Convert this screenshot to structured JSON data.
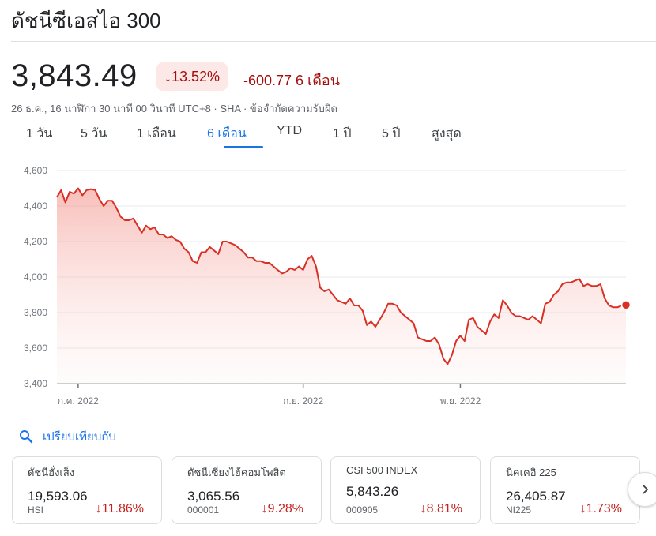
{
  "header": {
    "title": "ดัชนีซีเอสไอ 300"
  },
  "quote": {
    "price": "3,843.49",
    "pct_change": "13.52%",
    "abs_change": "-600.77 6 เดือน",
    "meta": "26 ธ.ค., 16 นาฬิกา 30 นาที 00 วินาที UTC+8 · SHA · ข้อจำกัดความรับผิด"
  },
  "tabs": [
    "1 วัน",
    "5 วัน",
    "1 เดือน",
    "6 เดือน",
    "YTD",
    "1 ปี",
    "5 ปี",
    "สูงสุด"
  ],
  "active_tab": "6 เดือน",
  "colors": {
    "down": "#d93025",
    "down_text": "#a50e0e",
    "accent": "#1a73e8",
    "badge_bg": "#fce8e6"
  },
  "chart_data": {
    "type": "area",
    "ylim": [
      3400,
      4600
    ],
    "y_ticks": [
      "4,600",
      "4,400",
      "4,200",
      "4,000",
      "3,800",
      "3,600",
      "3,400"
    ],
    "x_ticks": [
      {
        "label": "ก.ค. 2022",
        "index": 5
      },
      {
        "label": "ก.ย. 2022",
        "index": 58
      },
      {
        "label": "พ.ย. 2022",
        "index": 95
      }
    ],
    "values": [
      4450,
      4490,
      4420,
      4480,
      4470,
      4500,
      4460,
      4490,
      4495,
      4490,
      4440,
      4400,
      4430,
      4430,
      4390,
      4340,
      4320,
      4320,
      4330,
      4290,
      4250,
      4290,
      4270,
      4280,
      4240,
      4240,
      4220,
      4230,
      4210,
      4200,
      4160,
      4140,
      4090,
      4080,
      4140,
      4140,
      4170,
      4150,
      4130,
      4200,
      4200,
      4190,
      4180,
      4160,
      4140,
      4110,
      4110,
      4090,
      4090,
      4080,
      4080,
      4060,
      4040,
      4020,
      4030,
      4050,
      4040,
      4060,
      4040,
      4100,
      4120,
      4060,
      3940,
      3920,
      3930,
      3900,
      3870,
      3860,
      3850,
      3880,
      3840,
      3840,
      3810,
      3730,
      3750,
      3720,
      3760,
      3800,
      3850,
      3850,
      3840,
      3800,
      3780,
      3760,
      3740,
      3660,
      3650,
      3640,
      3640,
      3660,
      3620,
      3540,
      3510,
      3560,
      3640,
      3670,
      3640,
      3760,
      3770,
      3720,
      3700,
      3680,
      3750,
      3790,
      3770,
      3870,
      3840,
      3800,
      3780,
      3780,
      3770,
      3760,
      3780,
      3760,
      3740,
      3850,
      3860,
      3900,
      3920,
      3960,
      3970,
      3970,
      3980,
      3990,
      3950,
      3960,
      3950,
      3950,
      3960,
      3880,
      3840,
      3830,
      3830,
      3840,
      3843
    ]
  },
  "compare": {
    "label": "เปรียบเทียบกับ"
  },
  "cards": [
    {
      "name": "ดัชนีฮั่งเส็ง",
      "value": "19,593.06",
      "ticker": "HSI",
      "change": "11.86%"
    },
    {
      "name": "ดัชนีเซี่ยงไฮ้คอมโพสิต",
      "value": "3,065.56",
      "ticker": "000001",
      "change": "9.28%"
    },
    {
      "name": "CSI 500 INDEX",
      "value": "5,843.26",
      "ticker": "000905",
      "change": "8.81%"
    },
    {
      "name": "นิคเคอิ 225",
      "value": "26,405.87",
      "ticker": "NI225",
      "change": "1.73%"
    }
  ]
}
